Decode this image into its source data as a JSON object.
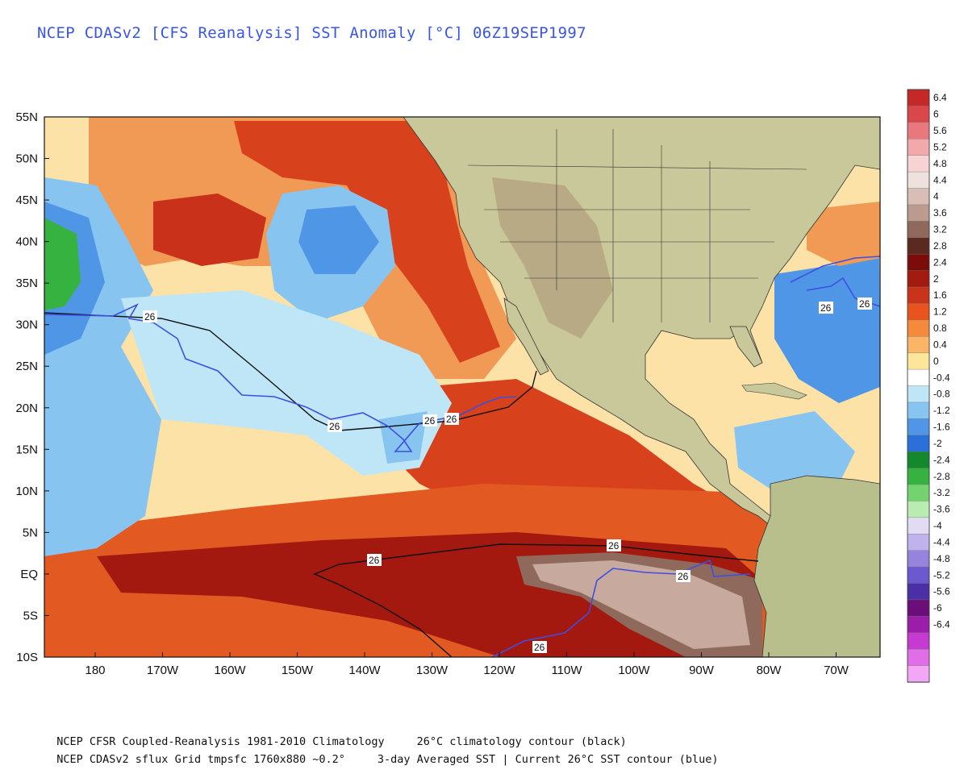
{
  "title": "NCEP CDASv2 [CFS Reanalysis] SST Anomaly [°C] 06Z19SEP1997",
  "footer": {
    "line1_left": "NCEP CFSR Coupled-Reanalysis 1981-2010 Climatology",
    "line1_right": "26°C climatology contour (black)",
    "line2_left": "NCEP CDASv2 sflux Grid tmpsfc 1760x880 ~0.2°",
    "line2_right": "3-day Averaged SST | Current 26°C SST contour (blue)"
  },
  "map": {
    "lon_labels": [
      "180",
      "170W",
      "160W",
      "150W",
      "140W",
      "130W",
      "120W",
      "110W",
      "100W",
      "90W",
      "80W",
      "70W"
    ],
    "lat_labels": [
      "55N",
      "50N",
      "45N",
      "40N",
      "35N",
      "30N",
      "25N",
      "20N",
      "15N",
      "10N",
      "5N",
      "EQ",
      "5S",
      "10S"
    ],
    "contour_label": "26",
    "colors": {
      "land": "#c9c89a",
      "clim_contour": "#111111",
      "current_contour": "#3d4fe0"
    }
  },
  "colorbar": {
    "labels": [
      "6.4",
      "6",
      "5.6",
      "5.2",
      "4.8",
      "4.4",
      "4",
      "3.6",
      "3.2",
      "2.8",
      "2.4",
      "2",
      "1.6",
      "1.2",
      "0.8",
      "0.4",
      "0",
      "-0.4",
      "-0.8",
      "-1.2",
      "-1.6",
      "-2",
      "-2.4",
      "-2.8",
      "-3.2",
      "-3.6",
      "-4",
      "-4.4",
      "-4.8",
      "-5.2",
      "-5.6",
      "-6",
      "-6.4"
    ],
    "colors": [
      "#c62828",
      "#d9474b",
      "#e8787e",
      "#f2a9ac",
      "#f7d3d3",
      "#efe2de",
      "#d8beb6",
      "#bb9a8f",
      "#8f6a5c",
      "#5a2a22",
      "#7a0d0a",
      "#a21a10",
      "#c8331a",
      "#e8531e",
      "#f58a3c",
      "#fbb567",
      "#fde69a",
      "#ffffff",
      "#bfe6f7",
      "#88c4f0",
      "#4f97e6",
      "#2b6fd9",
      "#13882c",
      "#36b241",
      "#73d46f",
      "#b9ecb1",
      "#e2dcf3",
      "#c0b2ec",
      "#9683de",
      "#6c58cf",
      "#4a2fa6",
      "#6a0f7a",
      "#9a1ea8",
      "#c73ad2",
      "#e06ee6",
      "#f3a6f3"
    ]
  }
}
